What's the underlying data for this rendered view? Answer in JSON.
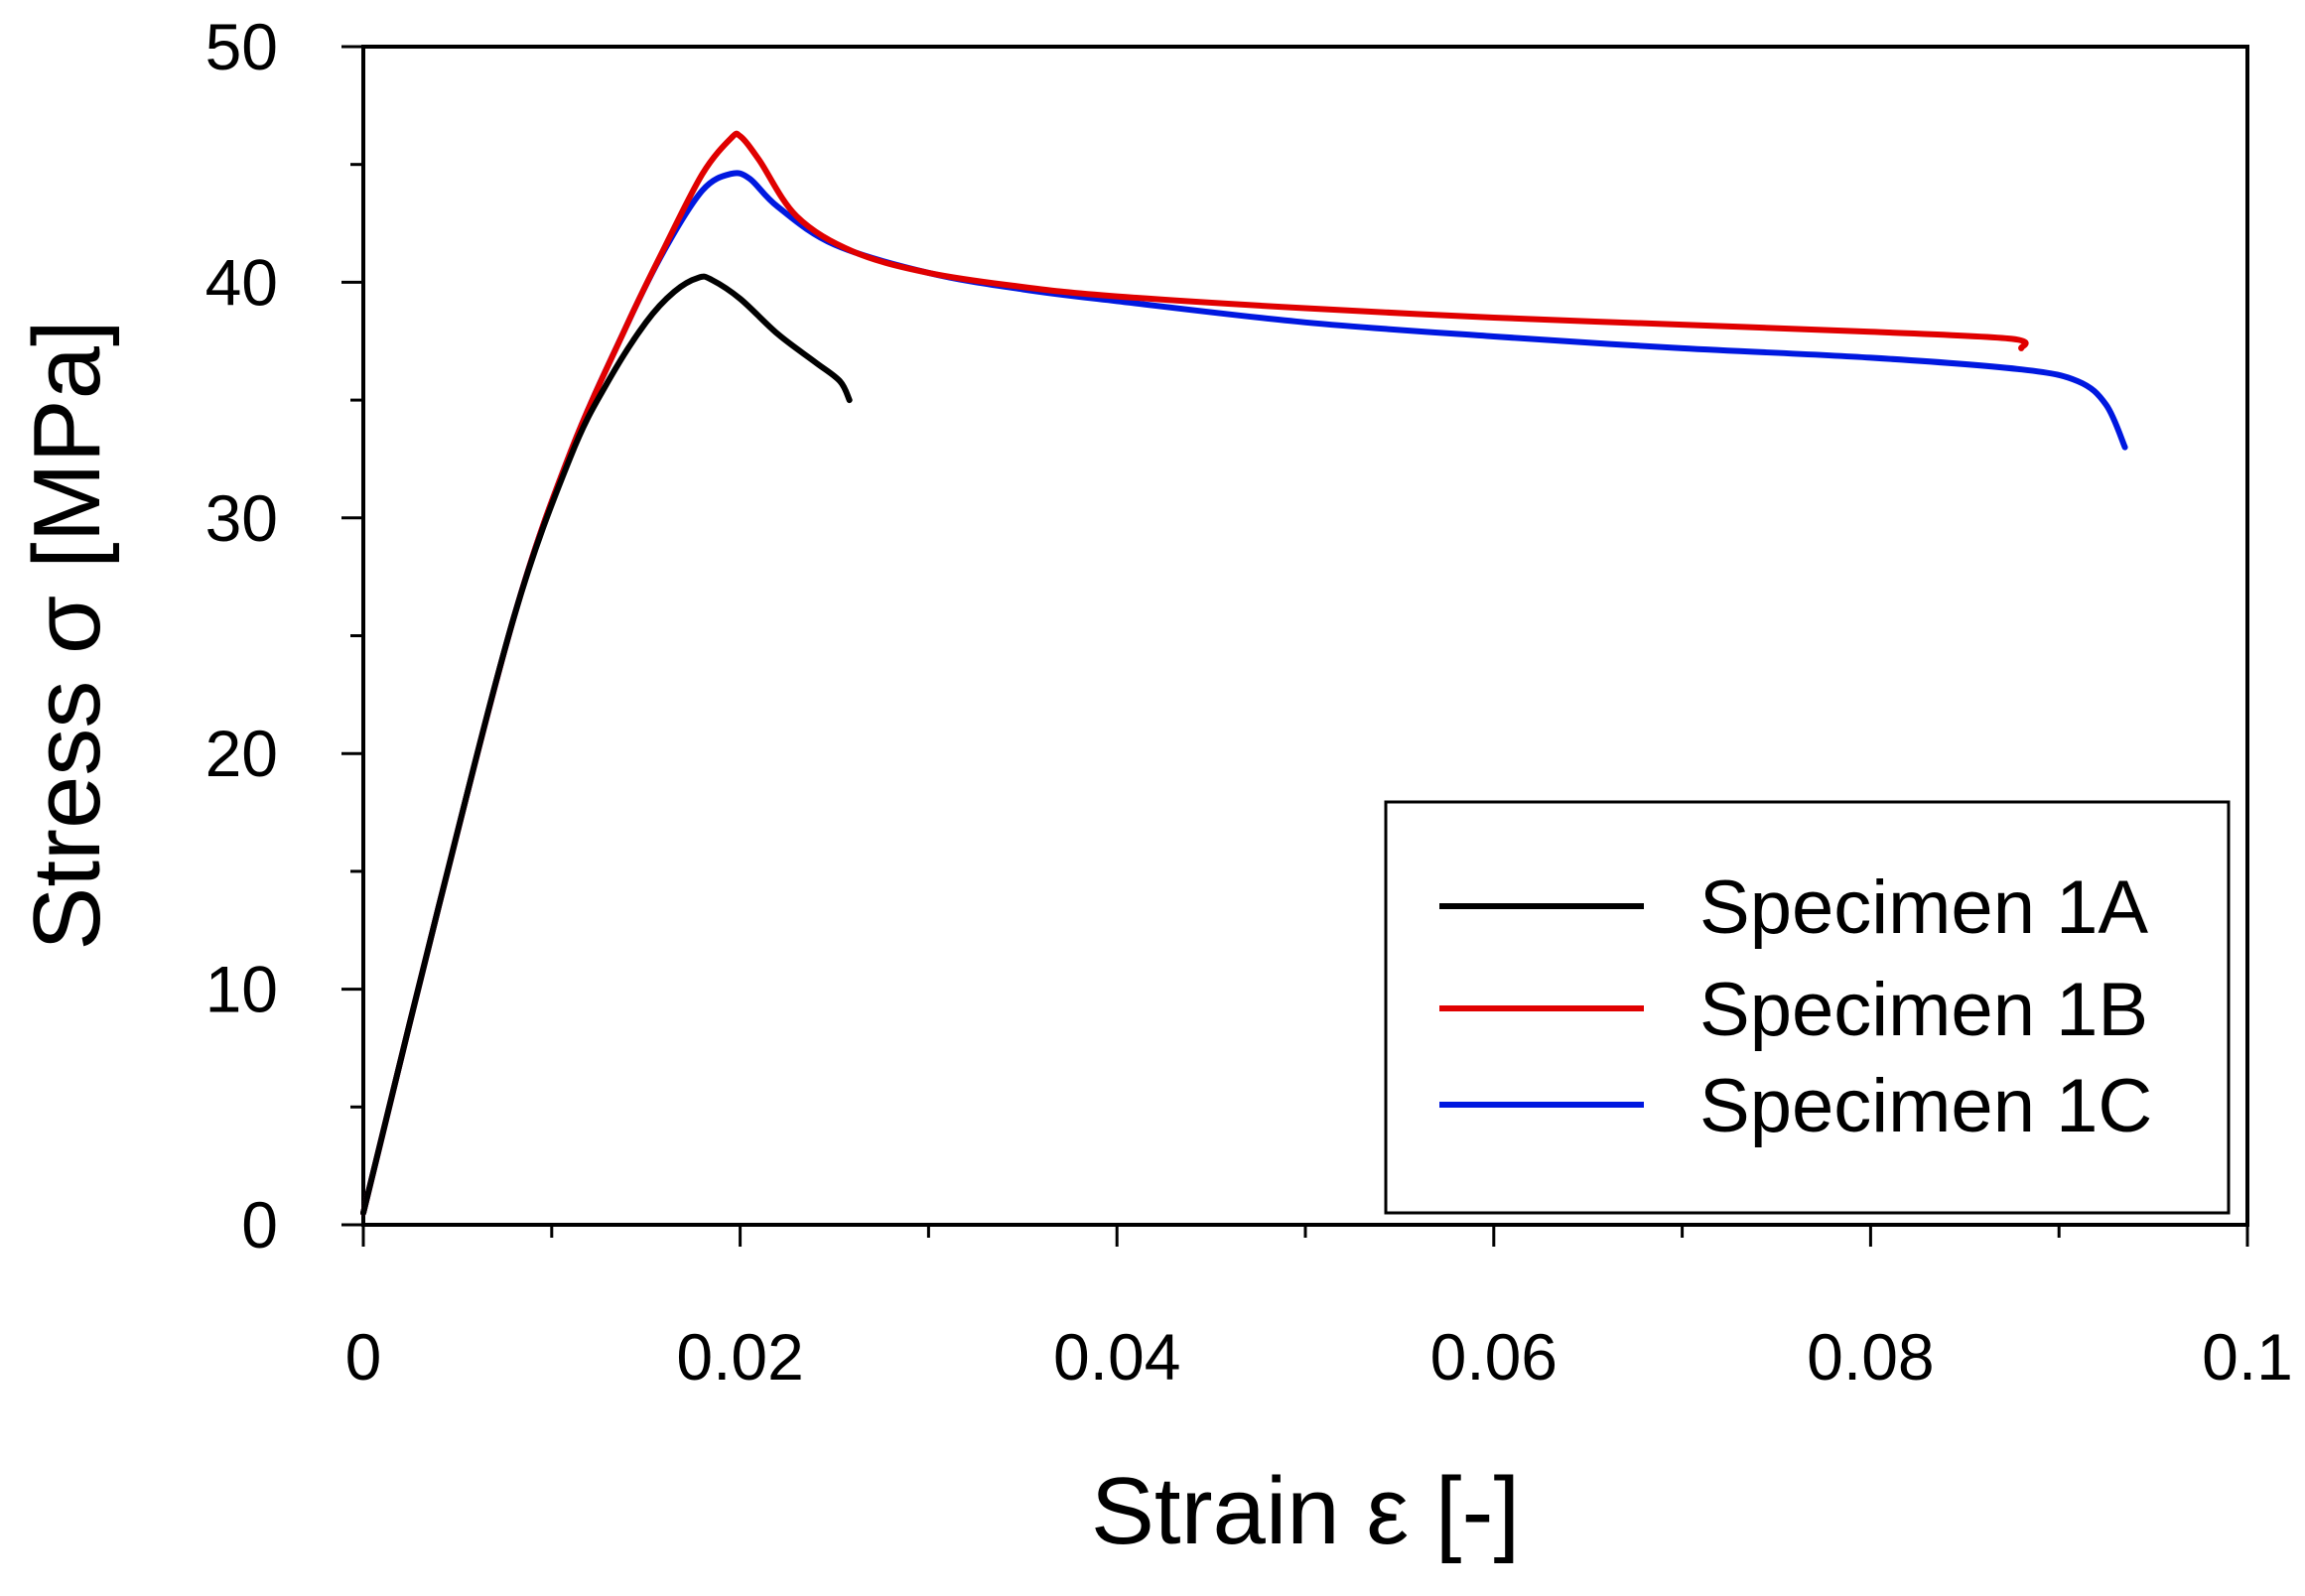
{
  "chart_data": {
    "type": "line",
    "title": "",
    "xlabel": "Strain ε [-]",
    "ylabel": "Stress σ [MPa]",
    "xlim": [
      0,
      0.1
    ],
    "ylim": [
      0,
      50
    ],
    "grid": false,
    "legend_position": "bottom-right",
    "x_ticks": [
      0,
      0.02,
      0.04,
      0.06,
      0.08,
      0.1
    ],
    "x_tick_labels": [
      "0",
      "0.02",
      "0.04",
      "0.06",
      "0.08",
      "0.1"
    ],
    "y_ticks": [
      0,
      10,
      20,
      30,
      40,
      50
    ],
    "y_tick_labels": [
      "0",
      "10",
      "20",
      "30",
      "40",
      "50"
    ],
    "series": [
      {
        "name": "Specimen 1A",
        "color": "#000000",
        "x": [
          0,
          0.004,
          0.008,
          0.011,
          0.013,
          0.015,
          0.0165,
          0.0178,
          0.0185,
          0.02,
          0.022,
          0.024,
          0.0253,
          0.0258
        ],
        "y": [
          0.5,
          13.5,
          25.8,
          32.6,
          35.8,
          38.3,
          39.6,
          40.2,
          40.1,
          39.3,
          37.8,
          36.6,
          35.8,
          35.0
        ]
      },
      {
        "name": "Specimen 1B",
        "color": "#e00000",
        "x": [
          0,
          0.004,
          0.008,
          0.011,
          0.014,
          0.016,
          0.018,
          0.0195,
          0.02,
          0.021,
          0.023,
          0.026,
          0.03,
          0.035,
          0.04,
          0.05,
          0.06,
          0.07,
          0.08,
          0.0875,
          0.088
        ],
        "y": [
          0.5,
          13.5,
          25.8,
          32.8,
          38.2,
          41.5,
          44.6,
          46.1,
          46.2,
          45.2,
          42.8,
          41.3,
          40.4,
          39.8,
          39.4,
          38.9,
          38.5,
          38.2,
          37.9,
          37.6,
          37.2
        ]
      },
      {
        "name": "Specimen 1C",
        "color": "#0018e0",
        "x": [
          0,
          0.004,
          0.008,
          0.011,
          0.014,
          0.016,
          0.018,
          0.0195,
          0.0205,
          0.022,
          0.025,
          0.03,
          0.035,
          0.04,
          0.05,
          0.06,
          0.07,
          0.08,
          0.088,
          0.091,
          0.0925,
          0.0935
        ],
        "y": [
          0.5,
          13.5,
          25.8,
          32.8,
          38.2,
          41.4,
          43.9,
          44.6,
          44.4,
          43.2,
          41.6,
          40.4,
          39.7,
          39.2,
          38.3,
          37.7,
          37.2,
          36.8,
          36.3,
          35.8,
          34.8,
          33.0
        ]
      }
    ]
  }
}
